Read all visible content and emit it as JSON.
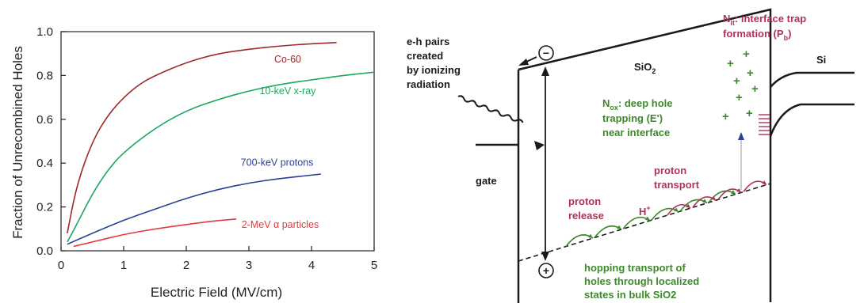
{
  "chart_data": {
    "type": "line",
    "xlabel": "Electric Field (MV/cm)",
    "ylabel": "Fraction of Unrecombined Holes",
    "xlim": [
      0,
      5
    ],
    "ylim": [
      0,
      1.0
    ],
    "x_ticks": [
      "0",
      "1",
      "2",
      "3",
      "4",
      "5"
    ],
    "y_ticks": [
      "0.0",
      "0.2",
      "0.4",
      "0.6",
      "0.8",
      "1.0"
    ],
    "grid": false,
    "series": [
      {
        "name": "Co-60",
        "color": "#a0282d",
        "x": [
          0.1,
          0.25,
          0.5,
          0.75,
          1.0,
          1.25,
          1.5,
          2.0,
          2.5,
          3.0,
          3.5,
          4.0,
          4.4
        ],
        "y": [
          0.08,
          0.3,
          0.5,
          0.62,
          0.7,
          0.76,
          0.8,
          0.86,
          0.9,
          0.92,
          0.935,
          0.945,
          0.95
        ]
      },
      {
        "name": "10-keV x-ray",
        "color": "#1aa862",
        "x": [
          0.1,
          0.25,
          0.5,
          0.75,
          1.0,
          1.5,
          2.0,
          2.5,
          3.0,
          3.5,
          4.0,
          4.5,
          5.0
        ],
        "y": [
          0.04,
          0.12,
          0.26,
          0.37,
          0.45,
          0.56,
          0.64,
          0.69,
          0.73,
          0.76,
          0.78,
          0.8,
          0.815
        ]
      },
      {
        "name": "700-keV protons",
        "color": "#2b3f97",
        "x": [
          0.1,
          0.5,
          1.0,
          1.5,
          2.0,
          2.5,
          3.0,
          3.5,
          4.15
        ],
        "y": [
          0.03,
          0.08,
          0.14,
          0.19,
          0.24,
          0.28,
          0.31,
          0.33,
          0.35
        ]
      },
      {
        "name": "2-MeV α particles",
        "color": "#e8383d",
        "x": [
          0.2,
          0.5,
          1.0,
          1.5,
          2.0,
          2.4,
          2.8
        ],
        "y": [
          0.02,
          0.04,
          0.075,
          0.1,
          0.12,
          0.135,
          0.145
        ]
      }
    ]
  },
  "diagram": {
    "eh_label": [
      "e-h pairs",
      "created",
      "by ionizing",
      "radiation"
    ],
    "gate_label": "gate",
    "sio2_label": "SiO",
    "sio2_sub": "2",
    "si_label": "Si",
    "nit_label": [
      "N",
      "it",
      ": interface trap",
      "formation (P",
      "b",
      ")"
    ],
    "nox_label": [
      "N",
      "ox",
      ": deep hole",
      "trapping (E')",
      "near interface"
    ],
    "proton_transport": [
      "proton",
      "transport"
    ],
    "proton_release": [
      "proton",
      "release"
    ],
    "hplus": "H",
    "hplus_sup": "+",
    "hopping": [
      "hopping transport of",
      "holes through localized",
      "states in bulk SiO2"
    ],
    "minus_symbol": "−",
    "plus_symbol": "+",
    "trapped_holes": "+",
    "colors": {
      "crimson": "#b03357",
      "green": "#3c8a2a",
      "black": "#1a1a1a"
    }
  }
}
